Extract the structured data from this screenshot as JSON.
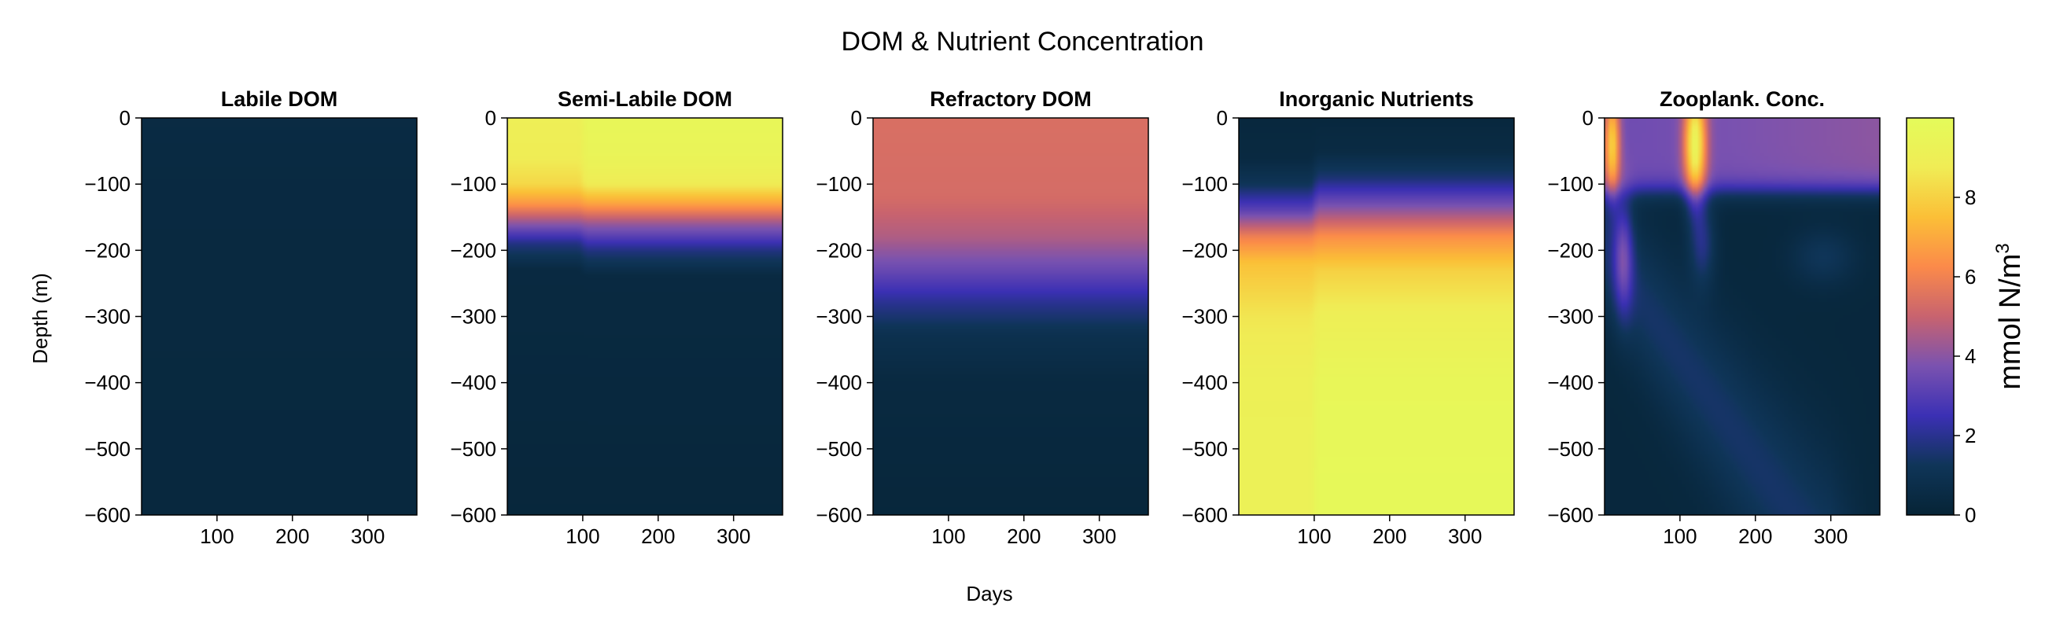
{
  "figure_title": "DOM & Nutrient Concentration",
  "colors": {
    "colormap": [
      "#062436",
      "#0f3558",
      "#3b30b4",
      "#7a52b0",
      "#c8636f",
      "#fb8a4a",
      "#fbbf37",
      "#f0ec55",
      "#e4fb5a"
    ],
    "frame": "#000000"
  },
  "chart_data": [
    {
      "type": "heatmap",
      "title": "Labile DOM",
      "xlabel": "Days",
      "ylabel": "Depth (m)",
      "xlim": [
        0,
        365
      ],
      "ylim": [
        -600,
        0
      ],
      "xticks": [
        100,
        200,
        300
      ],
      "yticks": [
        0,
        -100,
        -200,
        -300,
        -400,
        -500,
        -600
      ],
      "value_range": [
        0,
        10
      ],
      "field_description": "near zero everywhere (~0.3-0.6)",
      "depth_profiles": [
        {
          "day_range": [
            0,
            365
          ],
          "depth": [
            0,
            -100,
            -600
          ],
          "value": [
            0.5,
            0.4,
            0.3
          ]
        }
      ]
    },
    {
      "type": "heatmap",
      "title": "Semi-Labile DOM",
      "xlabel": "Days",
      "ylabel": "Depth (m)",
      "xlim": [
        0,
        365
      ],
      "ylim": [
        -600,
        0
      ],
      "xticks": [
        100,
        200,
        300
      ],
      "yticks": [
        0,
        -100,
        -200,
        -300,
        -400,
        -500,
        -600
      ],
      "value_range": [
        0,
        10
      ],
      "depth_profiles": [
        {
          "day_range": [
            0,
            95
          ],
          "depth": [
            0,
            -60,
            -100,
            -130,
            -160,
            -190,
            -230,
            -600
          ],
          "value": [
            9.0,
            8.8,
            8.2,
            6.5,
            4.0,
            1.8,
            0.4,
            0.2
          ]
        },
        {
          "day_range": [
            105,
            365
          ],
          "depth": [
            0,
            -60,
            -100,
            -130,
            -160,
            -200,
            -240,
            -600
          ],
          "value": [
            9.6,
            9.4,
            8.8,
            6.8,
            4.2,
            1.8,
            0.4,
            0.2
          ]
        }
      ]
    },
    {
      "type": "heatmap",
      "title": "Refractory DOM",
      "xlabel": "Days",
      "ylabel": "Depth (m)",
      "xlim": [
        0,
        365
      ],
      "ylim": [
        -600,
        0
      ],
      "xticks": [
        100,
        200,
        300
      ],
      "yticks": [
        0,
        -100,
        -200,
        -300,
        -400,
        -500,
        -600
      ],
      "value_range": [
        0,
        10
      ],
      "depth_profiles": [
        {
          "day_range": [
            0,
            365
          ],
          "depth": [
            0,
            -120,
            -180,
            -230,
            -280,
            -330,
            -400,
            -600
          ],
          "value": [
            5.4,
            5.3,
            4.6,
            3.4,
            2.0,
            0.9,
            0.4,
            0.2
          ]
        }
      ]
    },
    {
      "type": "heatmap",
      "title": "Inorganic Nutrients",
      "xlabel": "Days",
      "ylabel": "Depth (m)",
      "xlim": [
        0,
        365
      ],
      "ylim": [
        -600,
        0
      ],
      "xticks": [
        100,
        200,
        300
      ],
      "yticks": [
        0,
        -100,
        -200,
        -300,
        -400,
        -500,
        -600
      ],
      "value_range": [
        0,
        10
      ],
      "depth_profiles": [
        {
          "day_range": [
            0,
            95
          ],
          "depth": [
            0,
            -60,
            -100,
            -140,
            -180,
            -220,
            -300,
            -400,
            -600
          ],
          "value": [
            0.3,
            0.4,
            1.2,
            3.2,
            6.0,
            7.6,
            8.6,
            9.1,
            9.2
          ]
        },
        {
          "day_range": [
            105,
            365
          ],
          "depth": [
            0,
            -50,
            -90,
            -130,
            -180,
            -230,
            -300,
            -400,
            -600
          ],
          "value": [
            0.3,
            0.5,
            1.6,
            3.6,
            6.4,
            8.0,
            9.0,
            9.6,
            9.8
          ]
        }
      ]
    },
    {
      "type": "heatmap",
      "title": "Zooplank. Conc.",
      "xlabel": "Days",
      "ylabel": "Depth (m)",
      "xlim": [
        0,
        365
      ],
      "ylim": [
        -600,
        0
      ],
      "xticks": [
        100,
        200,
        300
      ],
      "yticks": [
        0,
        -100,
        -200,
        -300,
        -400,
        -500,
        -600
      ],
      "value_range": [
        0,
        10
      ],
      "field_description": "surface layer ~4 above -110 m; hot spots near day 10 and day 120 at the surface reaching ~9-10; sinking diagonal plume from day 0 at -200 m to day 250 at -600 m",
      "hot_spots": [
        {
          "day": 10,
          "depth": -40,
          "value": 8.5
        },
        {
          "day": 120,
          "depth": -40,
          "value": 9.8
        },
        {
          "day": 25,
          "depth": -210,
          "value": 3.0
        },
        {
          "day": 130,
          "depth": -190,
          "value": 2.0
        },
        {
          "day": 290,
          "depth": -210,
          "value": 1.5
        }
      ]
    }
  ],
  "colorbar": {
    "label": "mmol N/m",
    "label_superscript": "3",
    "range": [
      0,
      10
    ],
    "ticks": [
      0,
      2,
      4,
      6,
      8
    ]
  },
  "shared_xlabel": "Days",
  "shared_ylabel": "Depth (m)"
}
